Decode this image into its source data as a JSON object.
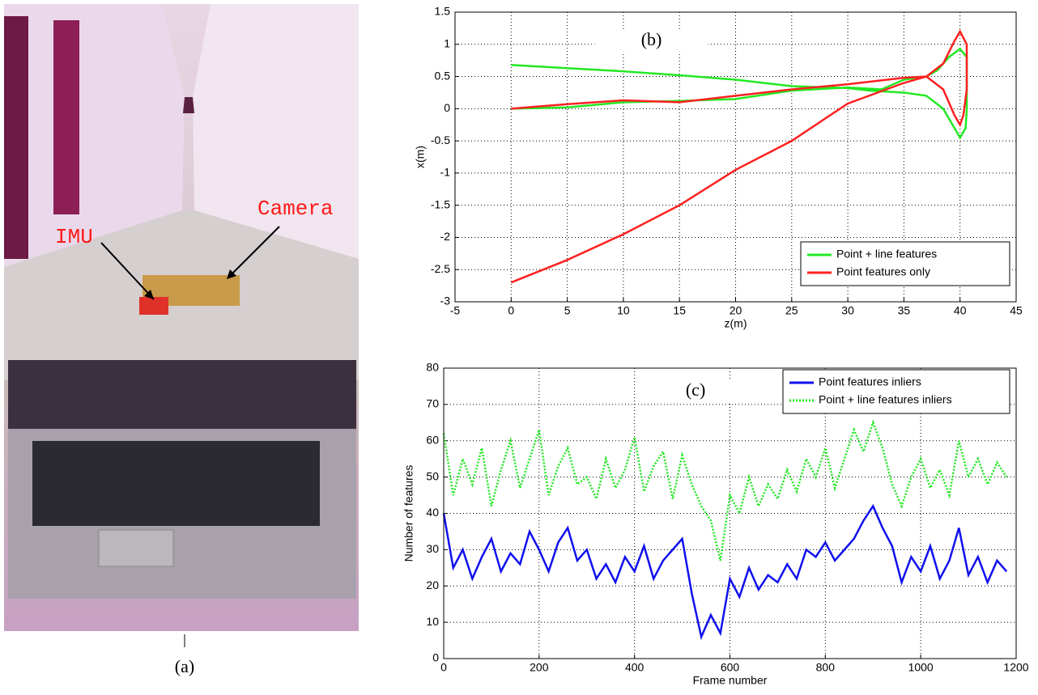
{
  "photo": {
    "labels": [
      "IMU",
      "Camera"
    ],
    "caption": "(a)"
  },
  "chart_data": [
    {
      "type": "line",
      "annotation": "(b)",
      "x_label": "z(m)",
      "y_label": "x(m)",
      "xlim": [
        -5,
        45
      ],
      "ylim": [
        -3,
        1.5
      ],
      "xticks": [
        -5,
        0,
        5,
        10,
        15,
        20,
        25,
        30,
        35,
        40,
        45
      ],
      "yticks": [
        -3,
        -2.5,
        -2,
        -1.5,
        -1,
        -0.5,
        0,
        0.5,
        1,
        1.5
      ],
      "grid": true,
      "legend": "lower right",
      "series": [
        {
          "name": "Point + line features",
          "color": "#22e822",
          "style": "solid",
          "x": [
            0,
            5,
            10,
            15,
            20,
            25,
            30,
            33,
            35,
            37,
            38,
            39,
            40,
            40.6,
            40.6,
            40.5,
            40,
            39.5,
            38.5,
            37,
            35,
            32,
            30,
            25,
            20,
            15,
            10,
            5,
            0
          ],
          "values": [
            0,
            0.02,
            0.1,
            0.12,
            0.15,
            0.28,
            0.33,
            0.3,
            0.45,
            0.5,
            0.6,
            0.8,
            0.93,
            0.8,
            0,
            -0.3,
            -0.45,
            -0.3,
            0,
            0.2,
            0.25,
            0.28,
            0.32,
            0.35,
            0.45,
            0.52,
            0.58,
            0.63,
            0.68
          ]
        },
        {
          "name": "Point features only",
          "color": "#ff2020",
          "style": "solid",
          "x": [
            0,
            5,
            10,
            15,
            20,
            25,
            30,
            35,
            37,
            38.5,
            39.5,
            40,
            40.6,
            40.6,
            40.3,
            40,
            39.5,
            38.5,
            37,
            35,
            30,
            25,
            20,
            15,
            10,
            5,
            0
          ],
          "values": [
            0,
            0.07,
            0.13,
            0.1,
            0.2,
            0.3,
            0.38,
            0.48,
            0.5,
            0.7,
            1.05,
            1.2,
            1.0,
            0.3,
            -0.1,
            -0.25,
            -0.1,
            0.3,
            0.5,
            0.4,
            0.08,
            -0.5,
            -0.95,
            -1.5,
            -1.95,
            -2.35,
            -2.7
          ]
        }
      ]
    },
    {
      "type": "line",
      "annotation": "(c)",
      "x_label": "Frame number",
      "y_label": "Number of features",
      "xlim": [
        0,
        1200
      ],
      "ylim": [
        0,
        80
      ],
      "xticks": [
        0,
        200,
        400,
        600,
        800,
        1000,
        1200
      ],
      "yticks": [
        0,
        10,
        20,
        30,
        40,
        50,
        60,
        70,
        80
      ],
      "grid": true,
      "legend": "upper right",
      "series": [
        {
          "name": "Point features inliers",
          "color": "#1010ee",
          "style": "solid",
          "x": [
            0,
            20,
            40,
            60,
            80,
            100,
            120,
            140,
            160,
            180,
            200,
            220,
            240,
            260,
            280,
            300,
            320,
            340,
            360,
            380,
            400,
            420,
            440,
            460,
            480,
            500,
            520,
            540,
            560,
            580,
            600,
            620,
            640,
            660,
            680,
            700,
            720,
            740,
            760,
            780,
            800,
            820,
            840,
            860,
            880,
            900,
            920,
            940,
            960,
            980,
            1000,
            1020,
            1040,
            1060,
            1080,
            1100,
            1120,
            1140,
            1160,
            1180
          ],
          "values": [
            40,
            25,
            30,
            22,
            28,
            33,
            24,
            29,
            26,
            35,
            30,
            24,
            32,
            36,
            27,
            30,
            22,
            26,
            21,
            28,
            24,
            31,
            22,
            27,
            30,
            33,
            18,
            6,
            12,
            7,
            22,
            17,
            25,
            19,
            23,
            21,
            26,
            22,
            30,
            28,
            32,
            27,
            30,
            33,
            38,
            42,
            36,
            31,
            21,
            28,
            24,
            31,
            22,
            27,
            36,
            23,
            28,
            21,
            27,
            24
          ]
        },
        {
          "name": "Point + line features inliers",
          "color": "#22e822",
          "style": "dotted",
          "x": [
            0,
            20,
            40,
            60,
            80,
            100,
            120,
            140,
            160,
            180,
            200,
            220,
            240,
            260,
            280,
            300,
            320,
            340,
            360,
            380,
            400,
            420,
            440,
            460,
            480,
            500,
            520,
            540,
            560,
            580,
            600,
            620,
            640,
            660,
            680,
            700,
            720,
            740,
            760,
            780,
            800,
            820,
            840,
            860,
            880,
            900,
            920,
            940,
            960,
            980,
            1000,
            1020,
            1040,
            1060,
            1080,
            1100,
            1120,
            1140,
            1160,
            1180
          ],
          "values": [
            62,
            45,
            55,
            48,
            58,
            42,
            52,
            60,
            47,
            55,
            63,
            45,
            53,
            58,
            48,
            50,
            44,
            55,
            47,
            52,
            61,
            46,
            53,
            57,
            44,
            56,
            48,
            42,
            38,
            27,
            45,
            40,
            50,
            42,
            48,
            44,
            52,
            46,
            55,
            50,
            58,
            47,
            55,
            63,
            57,
            65,
            58,
            48,
            42,
            50,
            55,
            47,
            52,
            45,
            60,
            50,
            55,
            48,
            54,
            50
          ]
        }
      ]
    }
  ]
}
